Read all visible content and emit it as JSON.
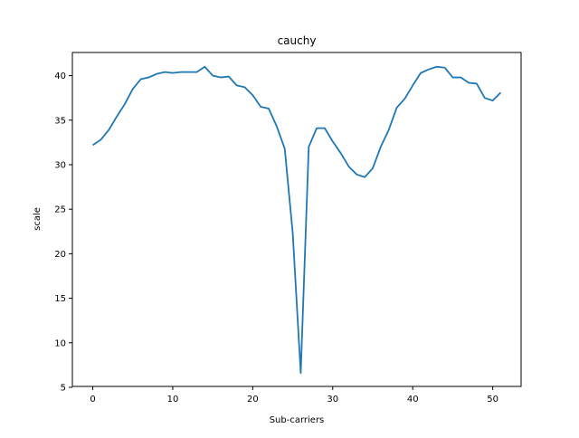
{
  "chart_data": {
    "type": "line",
    "title": "cauchy",
    "xlabel": "Sub-carriers",
    "ylabel": "scale",
    "xlim": [
      -2.55,
      53.55
    ],
    "ylim": [
      5.1,
      42.6
    ],
    "xticks": [
      0,
      10,
      20,
      30,
      40,
      50
    ],
    "yticks": [
      5,
      10,
      15,
      20,
      25,
      30,
      35,
      40
    ],
    "grid": false,
    "series": [
      {
        "color": "#1f77b4",
        "x": [
          0,
          1,
          2,
          3,
          4,
          5,
          6,
          7,
          8,
          9,
          10,
          11,
          12,
          13,
          14,
          15,
          16,
          17,
          18,
          19,
          20,
          21,
          22,
          23,
          24,
          25,
          26,
          27,
          28,
          29,
          30,
          31,
          32,
          33,
          34,
          35,
          36,
          37,
          38,
          39,
          40,
          41,
          42,
          43,
          44,
          45,
          46,
          47,
          48,
          49,
          50,
          51
        ],
        "y": [
          32.2,
          32.8,
          33.9,
          35.4,
          36.8,
          38.5,
          39.6,
          39.8,
          40.2,
          40.4,
          40.3,
          40.4,
          40.4,
          40.4,
          41.0,
          40.0,
          39.8,
          39.9,
          38.9,
          38.7,
          37.8,
          36.5,
          36.3,
          34.3,
          31.8,
          22.3,
          6.6,
          32.0,
          34.1,
          34.1,
          32.6,
          31.3,
          29.8,
          28.9,
          28.6,
          29.6,
          32.0,
          33.9,
          36.4,
          37.4,
          38.9,
          40.3,
          40.7,
          41.0,
          40.9,
          39.8,
          39.8,
          39.2,
          39.1,
          37.5,
          37.2,
          38.1
        ]
      }
    ]
  }
}
